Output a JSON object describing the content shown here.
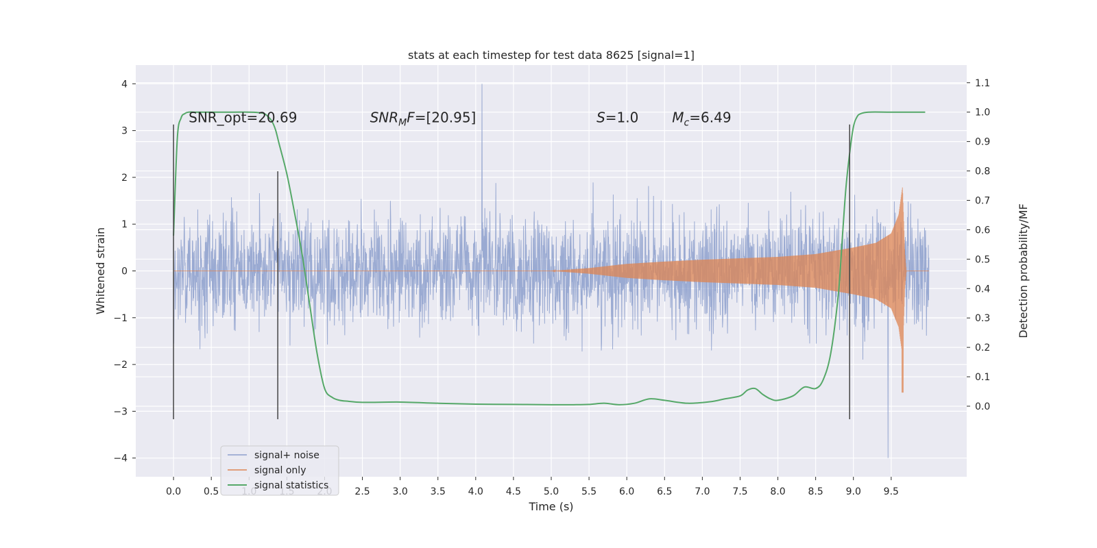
{
  "chart_data": {
    "type": "line",
    "title": "stats at each timestep for test data 8625 [signal=1]",
    "xlabel": "Time (s)",
    "ylabel": "Whitened strain",
    "ylabel_right": "Detection probability/MF",
    "xlim": [
      -0.5,
      10.5
    ],
    "ylim": [
      -4.4,
      4.4
    ],
    "ylim_right": [
      -0.24,
      1.16
    ],
    "x_ticks": [
      "0.0",
      "0.5",
      "1.0",
      "1.5",
      "2.0",
      "2.5",
      "3.0",
      "3.5",
      "4.0",
      "4.5",
      "5.0",
      "5.5",
      "6.0",
      "6.5",
      "7.0",
      "7.5",
      "8.0",
      "8.5",
      "9.0",
      "9.5"
    ],
    "y_ticks": [
      "4",
      "3",
      "2",
      "1",
      "0",
      "−1",
      "−2",
      "−3",
      "−4"
    ],
    "y_ticks_right": [
      "1.1",
      "1.0",
      "0.9",
      "0.8",
      "0.7",
      "0.6",
      "0.5",
      "0.4",
      "0.3",
      "0.2",
      "0.1",
      "0.0"
    ],
    "grid": true,
    "legend_position": "lower-left",
    "colors": {
      "background": "#eaeaf2",
      "grid": "#ffffff",
      "signal_noise": "#8c9fcc",
      "signal_only": "#dd8452",
      "statistics": "#55a868",
      "vlines": "#444444"
    },
    "series": [
      {
        "name": "signal+ noise",
        "x_range": [
          0.0,
          10.0
        ],
        "typical_amplitude": 1.25,
        "max_positive": 4.0,
        "max_negative": -4.0
      },
      {
        "name": "signal only",
        "x": [
          5.0,
          5.5,
          6.0,
          6.5,
          7.0,
          7.5,
          8.0,
          8.5,
          9.0,
          9.3,
          9.5,
          9.6,
          9.65,
          9.68,
          9.7
        ],
        "envelope": [
          0.0,
          0.06,
          0.15,
          0.2,
          0.24,
          0.27,
          0.3,
          0.36,
          0.5,
          0.6,
          0.8,
          1.2,
          1.8,
          0.4,
          0.0
        ],
        "peak_negative": -2.6
      },
      {
        "name": "signal statistics",
        "axis": "right",
        "x": [
          0.0,
          0.05,
          0.1,
          0.15,
          0.2,
          0.3,
          0.5,
          0.8,
          1.0,
          1.1,
          1.2,
          1.25,
          1.3,
          1.35,
          1.4,
          1.5,
          1.6,
          1.7,
          1.8,
          1.9,
          2.0,
          2.1,
          2.2,
          2.3,
          2.5,
          3.0,
          3.5,
          4.0,
          4.5,
          5.0,
          5.3,
          5.5,
          5.7,
          5.9,
          6.1,
          6.3,
          6.5,
          6.8,
          7.1,
          7.3,
          7.5,
          7.6,
          7.7,
          7.8,
          7.9,
          8.0,
          8.2,
          8.35,
          8.5,
          8.6,
          8.7,
          8.8,
          8.85,
          8.9,
          8.95,
          9.0,
          9.05,
          9.1,
          9.2,
          9.5,
          9.95
        ],
        "y": [
          0.58,
          0.91,
          0.98,
          0.995,
          1.0,
          1.0,
          1.0,
          1.0,
          1.0,
          0.999,
          0.995,
          0.985,
          0.97,
          0.94,
          0.89,
          0.79,
          0.66,
          0.52,
          0.35,
          0.18,
          0.06,
          0.03,
          0.02,
          0.017,
          0.013,
          0.014,
          0.01,
          0.007,
          0.006,
          0.005,
          0.005,
          0.006,
          0.01,
          0.005,
          0.01,
          0.025,
          0.02,
          0.01,
          0.015,
          0.025,
          0.035,
          0.055,
          0.06,
          0.04,
          0.025,
          0.02,
          0.035,
          0.065,
          0.06,
          0.09,
          0.18,
          0.38,
          0.56,
          0.74,
          0.86,
          0.95,
          0.985,
          0.995,
          1.0,
          1.0,
          1.0
        ]
      }
    ],
    "vertical_lines": [
      {
        "x": 0.0,
        "ymin": -3.17,
        "ymax": 3.13
      },
      {
        "x": 1.38,
        "ymin": -3.17,
        "ymax": 2.13
      },
      {
        "x": 8.95,
        "ymin": -3.17,
        "ymax": 3.13
      }
    ],
    "annotations": [
      {
        "x": 0.2,
        "y": 3.13,
        "text": "SNR_opt=20.69"
      },
      {
        "x": 2.6,
        "y": 3.13,
        "text": "SNR_MF=[20.95]"
      },
      {
        "x": 5.6,
        "y": 3.13,
        "text": "S=1.0"
      },
      {
        "x": 6.6,
        "y": 3.13,
        "text": "M_c=6.49"
      }
    ]
  }
}
